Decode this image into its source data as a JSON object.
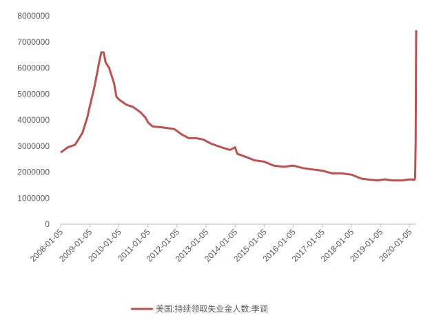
{
  "chart_data": {
    "type": "line",
    "x": [
      "2008-01-05",
      "2008-04-05",
      "2008-07-05",
      "2008-10-04",
      "2008-12-06",
      "2009-01-03",
      "2009-03-07",
      "2009-05-02",
      "2009-05-30",
      "2009-06-27",
      "2009-07-25",
      "2009-09-05",
      "2009-11-07",
      "2009-12-05",
      "2010-01-02",
      "2010-04-03",
      "2010-07-03",
      "2010-10-02",
      "2010-12-04",
      "2011-01-08",
      "2011-03-05",
      "2011-07-02",
      "2011-12-03",
      "2012-03-03",
      "2012-06-02",
      "2012-09-01",
      "2012-12-01",
      "2013-03-02",
      "2013-06-01",
      "2013-09-07",
      "2013-11-02",
      "2014-01-04",
      "2014-02-01",
      "2014-05-03",
      "2014-09-06",
      "2015-01-03",
      "2015-05-02",
      "2015-09-05",
      "2016-01-02",
      "2016-05-07",
      "2016-09-03",
      "2017-01-07",
      "2017-05-06",
      "2017-09-02",
      "2018-01-06",
      "2018-05-05",
      "2018-09-01",
      "2018-12-01",
      "2019-03-02",
      "2019-06-01",
      "2019-10-05",
      "2020-01-04",
      "2020-03-07",
      "2020-03-14",
      "2020-03-21",
      "2020-03-28"
    ],
    "series": [
      {
        "name": "美国:持续领取失业金人数:季调",
        "color": "#c0504d",
        "values": [
          2750000,
          2950000,
          3050000,
          3500000,
          4100000,
          4500000,
          5300000,
          6200000,
          6600000,
          6600000,
          6200000,
          6000000,
          5400000,
          4900000,
          4800000,
          4600000,
          4500000,
          4300000,
          4100000,
          3900000,
          3750000,
          3720000,
          3650000,
          3450000,
          3300000,
          3300000,
          3250000,
          3100000,
          3000000,
          2900000,
          2850000,
          2950000,
          2700000,
          2600000,
          2450000,
          2400000,
          2250000,
          2200000,
          2250000,
          2150000,
          2100000,
          2050000,
          1950000,
          1950000,
          1900000,
          1750000,
          1700000,
          1680000,
          1720000,
          1680000,
          1680000,
          1720000,
          1700000,
          1780000,
          3060000,
          7450000
        ]
      }
    ],
    "xlim": [
      "2008-01-05",
      "2020-03-28"
    ],
    "xticks": [
      "2008-01-05",
      "2009-01-05",
      "2010-01-05",
      "2011-01-05",
      "2012-01-05",
      "2013-01-05",
      "2014-01-05",
      "2015-01-05",
      "2016-01-05",
      "2017-01-05",
      "2018-01-05",
      "2019-01-05",
      "2020-01-05"
    ],
    "ylim": [
      0,
      8000000
    ],
    "yticks": [
      0,
      1000000,
      2000000,
      3000000,
      4000000,
      5000000,
      6000000,
      7000000,
      8000000
    ],
    "legend": "bottom"
  }
}
